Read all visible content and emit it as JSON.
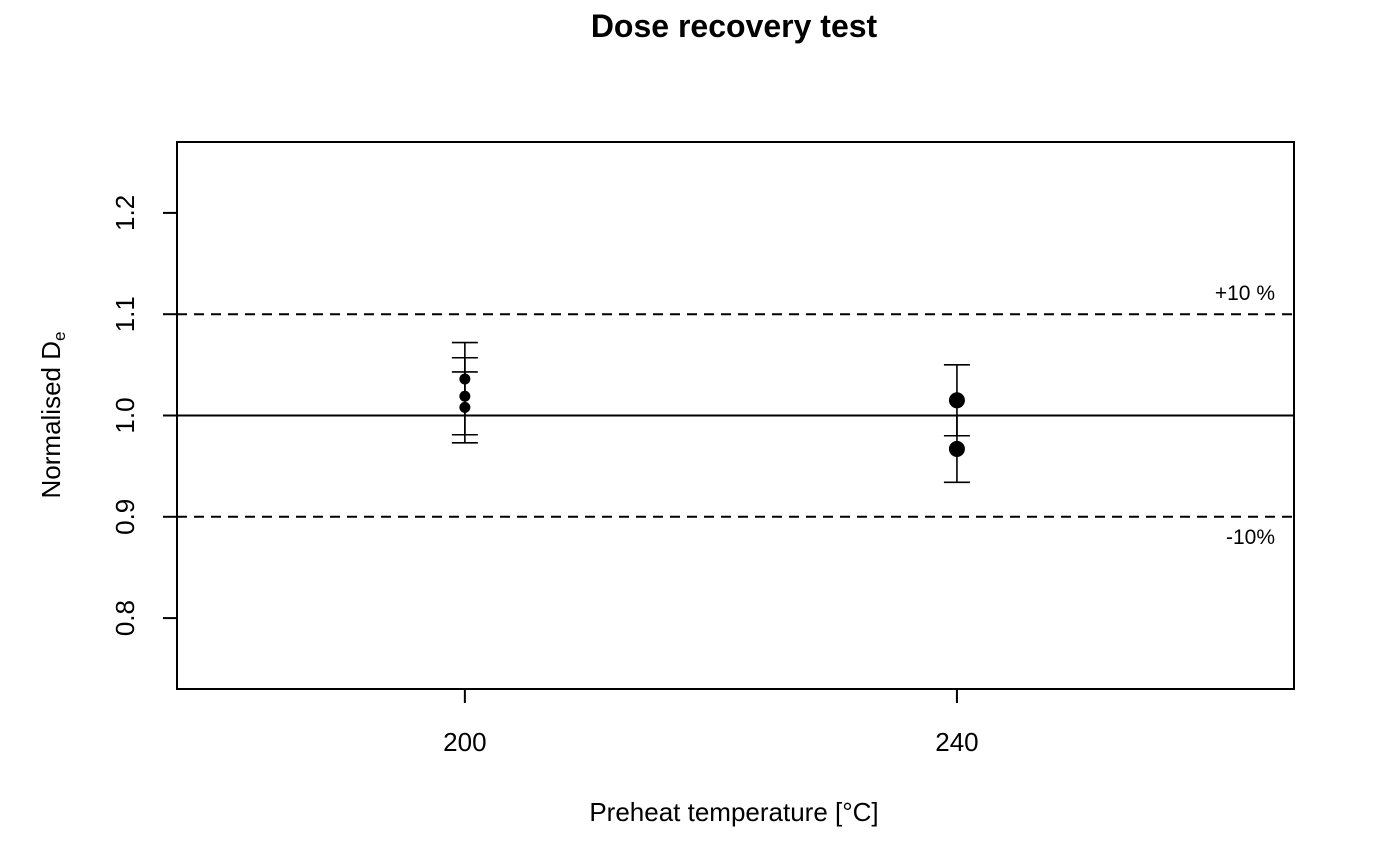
{
  "chart_data": {
    "type": "scatter",
    "title": "Dose recovery test",
    "xlabel": "Preheat temperature [°C]",
    "ylabel_main": "Normalised D",
    "ylabel_sub": "e",
    "x_ticks": [
      200,
      240
    ],
    "y_ticks": [
      0.8,
      0.9,
      1.0,
      1.1,
      1.2
    ],
    "y_tick_labels": [
      "0.8",
      "0.9",
      "1.0",
      "1.1",
      "1.2"
    ],
    "x_tick_labels": [
      "200",
      "240"
    ],
    "xlim": [
      176.6,
      267.4
    ],
    "ylim": [
      0.73,
      1.27
    ],
    "reference_lines": [
      {
        "y": 1.0,
        "style": "solid"
      },
      {
        "y": 1.1,
        "style": "dashed",
        "label": "+10 %"
      },
      {
        "y": 0.9,
        "style": "dashed",
        "label": "-10%"
      }
    ],
    "points": [
      {
        "x": 200,
        "y": 1.036,
        "err": 0.036,
        "size": "small"
      },
      {
        "x": 200,
        "y": 1.019,
        "err": 0.038,
        "size": "small"
      },
      {
        "x": 200,
        "y": 1.008,
        "err": 0.035,
        "size": "small"
      },
      {
        "x": 240,
        "y": 1.015,
        "err": 0.035,
        "size": "large"
      },
      {
        "x": 240,
        "y": 0.967,
        "err": 0.033,
        "size": "large"
      }
    ],
    "grid": false,
    "legend": "none"
  }
}
